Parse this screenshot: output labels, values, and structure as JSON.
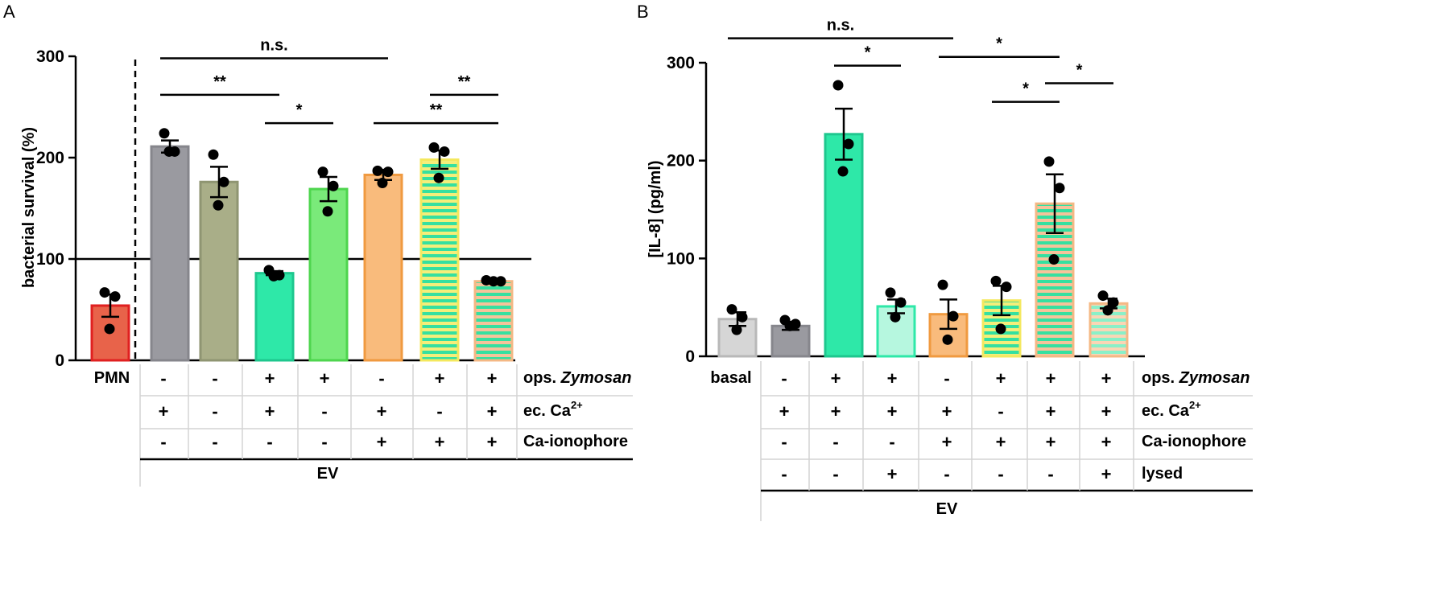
{
  "chart_data": [
    {
      "panel": "A",
      "type": "bar",
      "ylabel": "bacterial survival (%)",
      "ylim": [
        0,
        300
      ],
      "yticks": [
        "0",
        "100",
        "200",
        "300"
      ],
      "reference_line": 100,
      "bars": [
        {
          "group": "PMN",
          "value": 54,
          "sem": 11,
          "points": [
            67,
            63,
            31
          ],
          "fill": "#e8634a",
          "edge": "#e02020",
          "hatch": false
        },
        {
          "group": "EV",
          "value": 211,
          "sem": 6,
          "points": [
            224,
            206,
            206
          ],
          "fill": "#9a9aa0",
          "edge": "#86868c",
          "hatch": false
        },
        {
          "group": "EV",
          "value": 176,
          "sem": 15,
          "points": [
            203,
            176,
            153
          ],
          "fill": "#a9ae88",
          "edge": "#8f9572",
          "hatch": false
        },
        {
          "group": "EV",
          "value": 86,
          "sem": 2,
          "points": [
            89,
            84,
            83
          ],
          "fill": "#2ee8a8",
          "edge": "#1ec78e",
          "hatch": false
        },
        {
          "group": "EV",
          "value": 169,
          "sem": 12,
          "points": [
            186,
            172,
            147
          ],
          "fill": "#7aea7a",
          "edge": "#4ed54e",
          "hatch": false
        },
        {
          "group": "EV",
          "value": 183,
          "sem": 5,
          "points": [
            187,
            186,
            175
          ],
          "fill": "#f9bb7c",
          "edge": "#f09a40",
          "hatch": false
        },
        {
          "group": "EV",
          "value": 198,
          "sem": 9,
          "points": [
            210,
            206,
            180
          ],
          "fill": "#ffffff",
          "edge": "#f4e85e",
          "hatch": true,
          "stripe": "#35e0a0",
          "stripe_bg": "#f4ee7a"
        },
        {
          "group": "EV",
          "value": 78,
          "sem": 1,
          "points": [
            79,
            78,
            78
          ],
          "fill": "#ffffff",
          "edge": "#f4b885",
          "hatch": true,
          "stripe": "#35e0a0",
          "stripe_bg": "#f5c39a"
        }
      ],
      "significance": [
        {
          "label": "n.s.",
          "from": 1,
          "to": 5,
          "y": 298
        },
        {
          "label": "**",
          "from": 1,
          "to": 3,
          "y": 262
        },
        {
          "label": "*",
          "from": 3,
          "to": 4,
          "y": 234
        },
        {
          "label": "**",
          "from": 5,
          "to": 7,
          "y": 234
        },
        {
          "label": "**",
          "from": 6,
          "to": 7,
          "y": 262
        }
      ],
      "table": {
        "first_label": "PMN",
        "rows": [
          {
            "label": "ops. ",
            "label_italic": "Zymosan",
            "sup": "",
            "cells": [
              "-",
              "-",
              "+",
              "+",
              "-",
              "+",
              "+"
            ]
          },
          {
            "label": "ec. Ca",
            "label_italic": "",
            "sup": "2+",
            "cells": [
              "+",
              "-",
              "+",
              "-",
              "+",
              "-",
              "+"
            ]
          },
          {
            "label": "Ca-ionophore",
            "label_italic": "",
            "sup": "",
            "cells": [
              "-",
              "-",
              "-",
              "-",
              "+",
              "+",
              "+"
            ]
          }
        ],
        "group_label": "EV"
      }
    },
    {
      "panel": "B",
      "type": "bar",
      "ylabel": "[IL-8] (pg/ml)",
      "ylim": [
        0,
        300
      ],
      "yticks": [
        "0",
        "100",
        "200",
        "300"
      ],
      "bars": [
        {
          "group": "basal",
          "value": 38,
          "sem": 7,
          "points": [
            48,
            40,
            27
          ],
          "fill": "#d6d6d6",
          "edge": "#b8b8b8",
          "hatch": false
        },
        {
          "group": "EV",
          "value": 31,
          "sem": 4,
          "points": [
            37,
            33,
            31
          ],
          "fill": "#9a9aa0",
          "edge": "#86868c",
          "hatch": false
        },
        {
          "group": "EV",
          "value": 227,
          "sem": 26,
          "points": [
            277,
            217,
            189
          ],
          "fill": "#2ee8a8",
          "edge": "#1ec78e",
          "hatch": false
        },
        {
          "group": "EV",
          "value": 51,
          "sem": 7,
          "points": [
            65,
            55,
            40
          ],
          "fill": "#b6f7df",
          "edge": "#2ee8a8",
          "hatch": false
        },
        {
          "group": "EV",
          "value": 43,
          "sem": 15,
          "points": [
            73,
            41,
            17
          ],
          "fill": "#f9bb7c",
          "edge": "#f09a40",
          "hatch": false
        },
        {
          "group": "EV",
          "value": 57,
          "sem": 15,
          "points": [
            77,
            71,
            28
          ],
          "fill": "#ffffff",
          "edge": "#f4e85e",
          "hatch": true,
          "stripe": "#35e0a0",
          "stripe_bg": "#f4ee7a"
        },
        {
          "group": "EV",
          "value": 156,
          "sem": 30,
          "points": [
            199,
            172,
            99
          ],
          "fill": "#ffffff",
          "edge": "#f4b885",
          "hatch": true,
          "stripe": "#35e0a0",
          "stripe_bg": "#f5c39a"
        },
        {
          "group": "EV",
          "value": 54,
          "sem": 5,
          "points": [
            62,
            55,
            47
          ],
          "fill": "#ffffff",
          "edge": "#f4b885",
          "hatch": true,
          "stripe": "#8af0c8",
          "stripe_bg": "#f9d6b5"
        }
      ],
      "significance": [
        {
          "label": "n.s.",
          "from": 0,
          "to": 4,
          "y": 325
        },
        {
          "label": "*",
          "from": 2,
          "to": 3,
          "y": 297
        },
        {
          "label": "*",
          "from": 4,
          "to": 6,
          "y": 306
        },
        {
          "label": "*",
          "from": 5,
          "to": 6,
          "y": 260
        },
        {
          "label": "*",
          "from": 6,
          "to": 7,
          "y": 279
        }
      ],
      "table": {
        "first_label": "basal",
        "rows": [
          {
            "label": "ops. ",
            "label_italic": "Zymosan",
            "sup": "",
            "cells": [
              "-",
              "+",
              "+",
              "-",
              "+",
              "+",
              "+"
            ]
          },
          {
            "label": "ec. Ca",
            "label_italic": "",
            "sup": "2+",
            "cells": [
              "+",
              "+",
              "+",
              "+",
              "-",
              "+",
              "+"
            ]
          },
          {
            "label": "Ca-ionophore",
            "label_italic": "",
            "sup": "",
            "cells": [
              "-",
              "-",
              "-",
              "+",
              "+",
              "+",
              "+"
            ]
          },
          {
            "label": "lysed",
            "label_italic": "",
            "sup": "",
            "cells": [
              "-",
              "-",
              "+",
              "-",
              "-",
              "-",
              "+"
            ]
          }
        ],
        "group_label": "EV"
      }
    }
  ]
}
